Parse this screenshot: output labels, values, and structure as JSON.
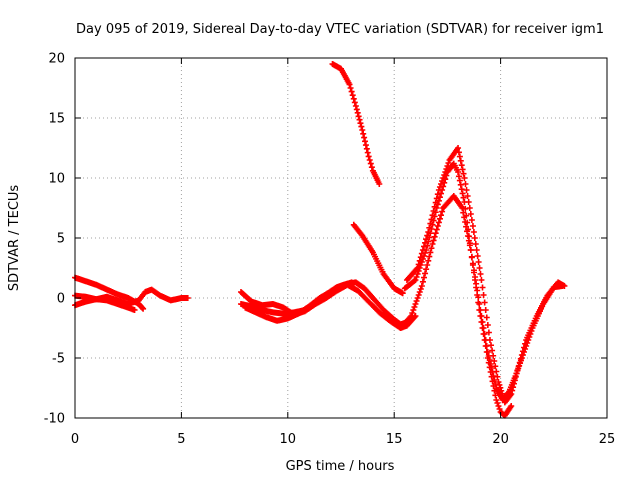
{
  "chart_data": {
    "type": "scatter",
    "title": "Day 095 of 2019, Sidereal Day-to-day VTEC variation (SDTVAR) for receiver igm1",
    "xlabel": "GPS time / hours",
    "ylabel": "SDTVAR / TECUs",
    "xlim": [
      0,
      25
    ],
    "ylim": [
      -10,
      20
    ],
    "xticks": [
      "0",
      "5",
      "10",
      "15",
      "20",
      "25"
    ],
    "yticks": [
      "-10",
      "-5",
      "0",
      "5",
      "10",
      "15",
      "20"
    ],
    "grid": true,
    "marker": "+",
    "color": "#ff0000",
    "series": [
      {
        "name": "trace-1",
        "x": [
          0.0,
          0.5,
          1.0,
          1.5,
          2.0,
          2.5,
          3.0,
          3.2
        ],
        "y": [
          1.7,
          1.4,
          1.1,
          0.7,
          0.3,
          0.0,
          -0.5,
          -0.9
        ]
      },
      {
        "name": "trace-2",
        "x": [
          0.0,
          0.5,
          1.0,
          1.5,
          2.0,
          2.5,
          2.8
        ],
        "y": [
          0.2,
          0.1,
          -0.1,
          -0.2,
          -0.5,
          -0.8,
          -1.0
        ]
      },
      {
        "name": "trace-3",
        "x": [
          0.0,
          0.5,
          1.0,
          1.5,
          2.0,
          2.5,
          3.0,
          3.3,
          3.6,
          4.0,
          4.5,
          5.0,
          5.3
        ],
        "y": [
          -0.6,
          -0.3,
          -0.1,
          0.1,
          -0.2,
          -0.5,
          -0.2,
          0.5,
          0.7,
          0.2,
          -0.2,
          0.0,
          0.0
        ]
      },
      {
        "name": "trace-4",
        "x": [
          7.8,
          8.3,
          8.8,
          9.3,
          9.8,
          10.3,
          10.8,
          11.3,
          11.8,
          12.3,
          12.8,
          13.2,
          13.6,
          14.0,
          14.5,
          15.0,
          15.3,
          15.6
        ],
        "y": [
          -0.5,
          -0.7,
          -1.0,
          -1.2,
          -1.3,
          -1.2,
          -1.0,
          -0.4,
          0.3,
          0.9,
          1.2,
          1.3,
          0.8,
          0.0,
          -1.0,
          -1.8,
          -2.2,
          -2.0
        ]
      },
      {
        "name": "trace-5",
        "x": [
          7.8,
          8.3,
          8.8,
          9.3,
          9.8,
          10.3,
          10.8,
          11.3,
          11.8,
          12.3,
          12.8,
          13.3,
          13.8,
          14.3,
          14.8,
          15.3,
          15.6,
          16.0
        ],
        "y": [
          0.5,
          -0.3,
          -0.6,
          -0.5,
          -0.8,
          -1.4,
          -1.1,
          -0.5,
          0.0,
          0.6,
          1.1,
          0.6,
          -0.3,
          -1.2,
          -1.9,
          -2.5,
          -2.3,
          -1.5
        ]
      },
      {
        "name": "trace-6",
        "x": [
          8.0,
          8.5,
          9.0,
          9.5,
          10.0,
          10.5,
          11.0,
          11.5,
          12.0,
          12.5,
          13.0
        ],
        "y": [
          -0.8,
          -1.2,
          -1.6,
          -1.9,
          -1.7,
          -1.3,
          -0.7,
          0.0,
          0.5,
          1.0,
          1.3
        ]
      },
      {
        "name": "trace-7",
        "x": [
          12.1,
          12.5,
          12.9,
          13.2,
          13.5,
          13.8,
          14.0,
          14.3
        ],
        "y": [
          19.5,
          19.1,
          17.8,
          16.0,
          14.0,
          11.8,
          10.6,
          9.5
        ]
      },
      {
        "name": "trace-8",
        "x": [
          13.1,
          13.5,
          14.0,
          14.5,
          15.0,
          15.4
        ],
        "y": [
          6.1,
          5.2,
          3.8,
          2.0,
          0.8,
          0.4
        ]
      },
      {
        "name": "trace-9",
        "x": [
          15.5,
          16.0,
          16.5,
          17.0,
          17.5,
          17.8,
          18.0,
          18.3,
          18.6,
          19.0,
          19.4,
          19.8,
          20.1,
          20.4,
          20.7,
          21.0,
          21.5,
          22.0,
          22.5,
          22.9
        ],
        "y": [
          0.8,
          1.5,
          4.0,
          7.5,
          10.5,
          11.2,
          10.5,
          8.0,
          4.0,
          -0.5,
          -4.5,
          -7.5,
          -8.5,
          -7.8,
          -6.5,
          -5.0,
          -2.5,
          -0.5,
          0.9,
          1.0
        ]
      },
      {
        "name": "trace-10",
        "x": [
          15.6,
          16.1,
          16.6,
          17.1,
          17.6,
          18.0,
          18.3,
          18.7,
          19.1,
          19.5,
          19.9,
          20.2,
          20.5,
          20.8,
          21.2,
          21.7,
          22.2,
          22.7,
          23.0
        ],
        "y": [
          1.5,
          2.5,
          5.5,
          9.0,
          11.5,
          12.5,
          10.0,
          6.0,
          1.5,
          -3.5,
          -7.0,
          -8.7,
          -8.0,
          -6.0,
          -3.5,
          -1.5,
          0.2,
          1.3,
          1.0
        ]
      },
      {
        "name": "trace-11",
        "x": [
          15.3,
          15.8,
          16.3,
          16.8,
          17.3,
          17.8,
          18.2,
          18.6,
          19.0,
          19.4,
          19.8,
          20.0,
          20.2,
          20.5
        ],
        "y": [
          -2.5,
          -1.5,
          1.0,
          4.5,
          7.5,
          8.5,
          7.5,
          4.0,
          -1.0,
          -5.0,
          -8.5,
          -9.5,
          -9.8,
          -9.0
        ]
      }
    ]
  }
}
